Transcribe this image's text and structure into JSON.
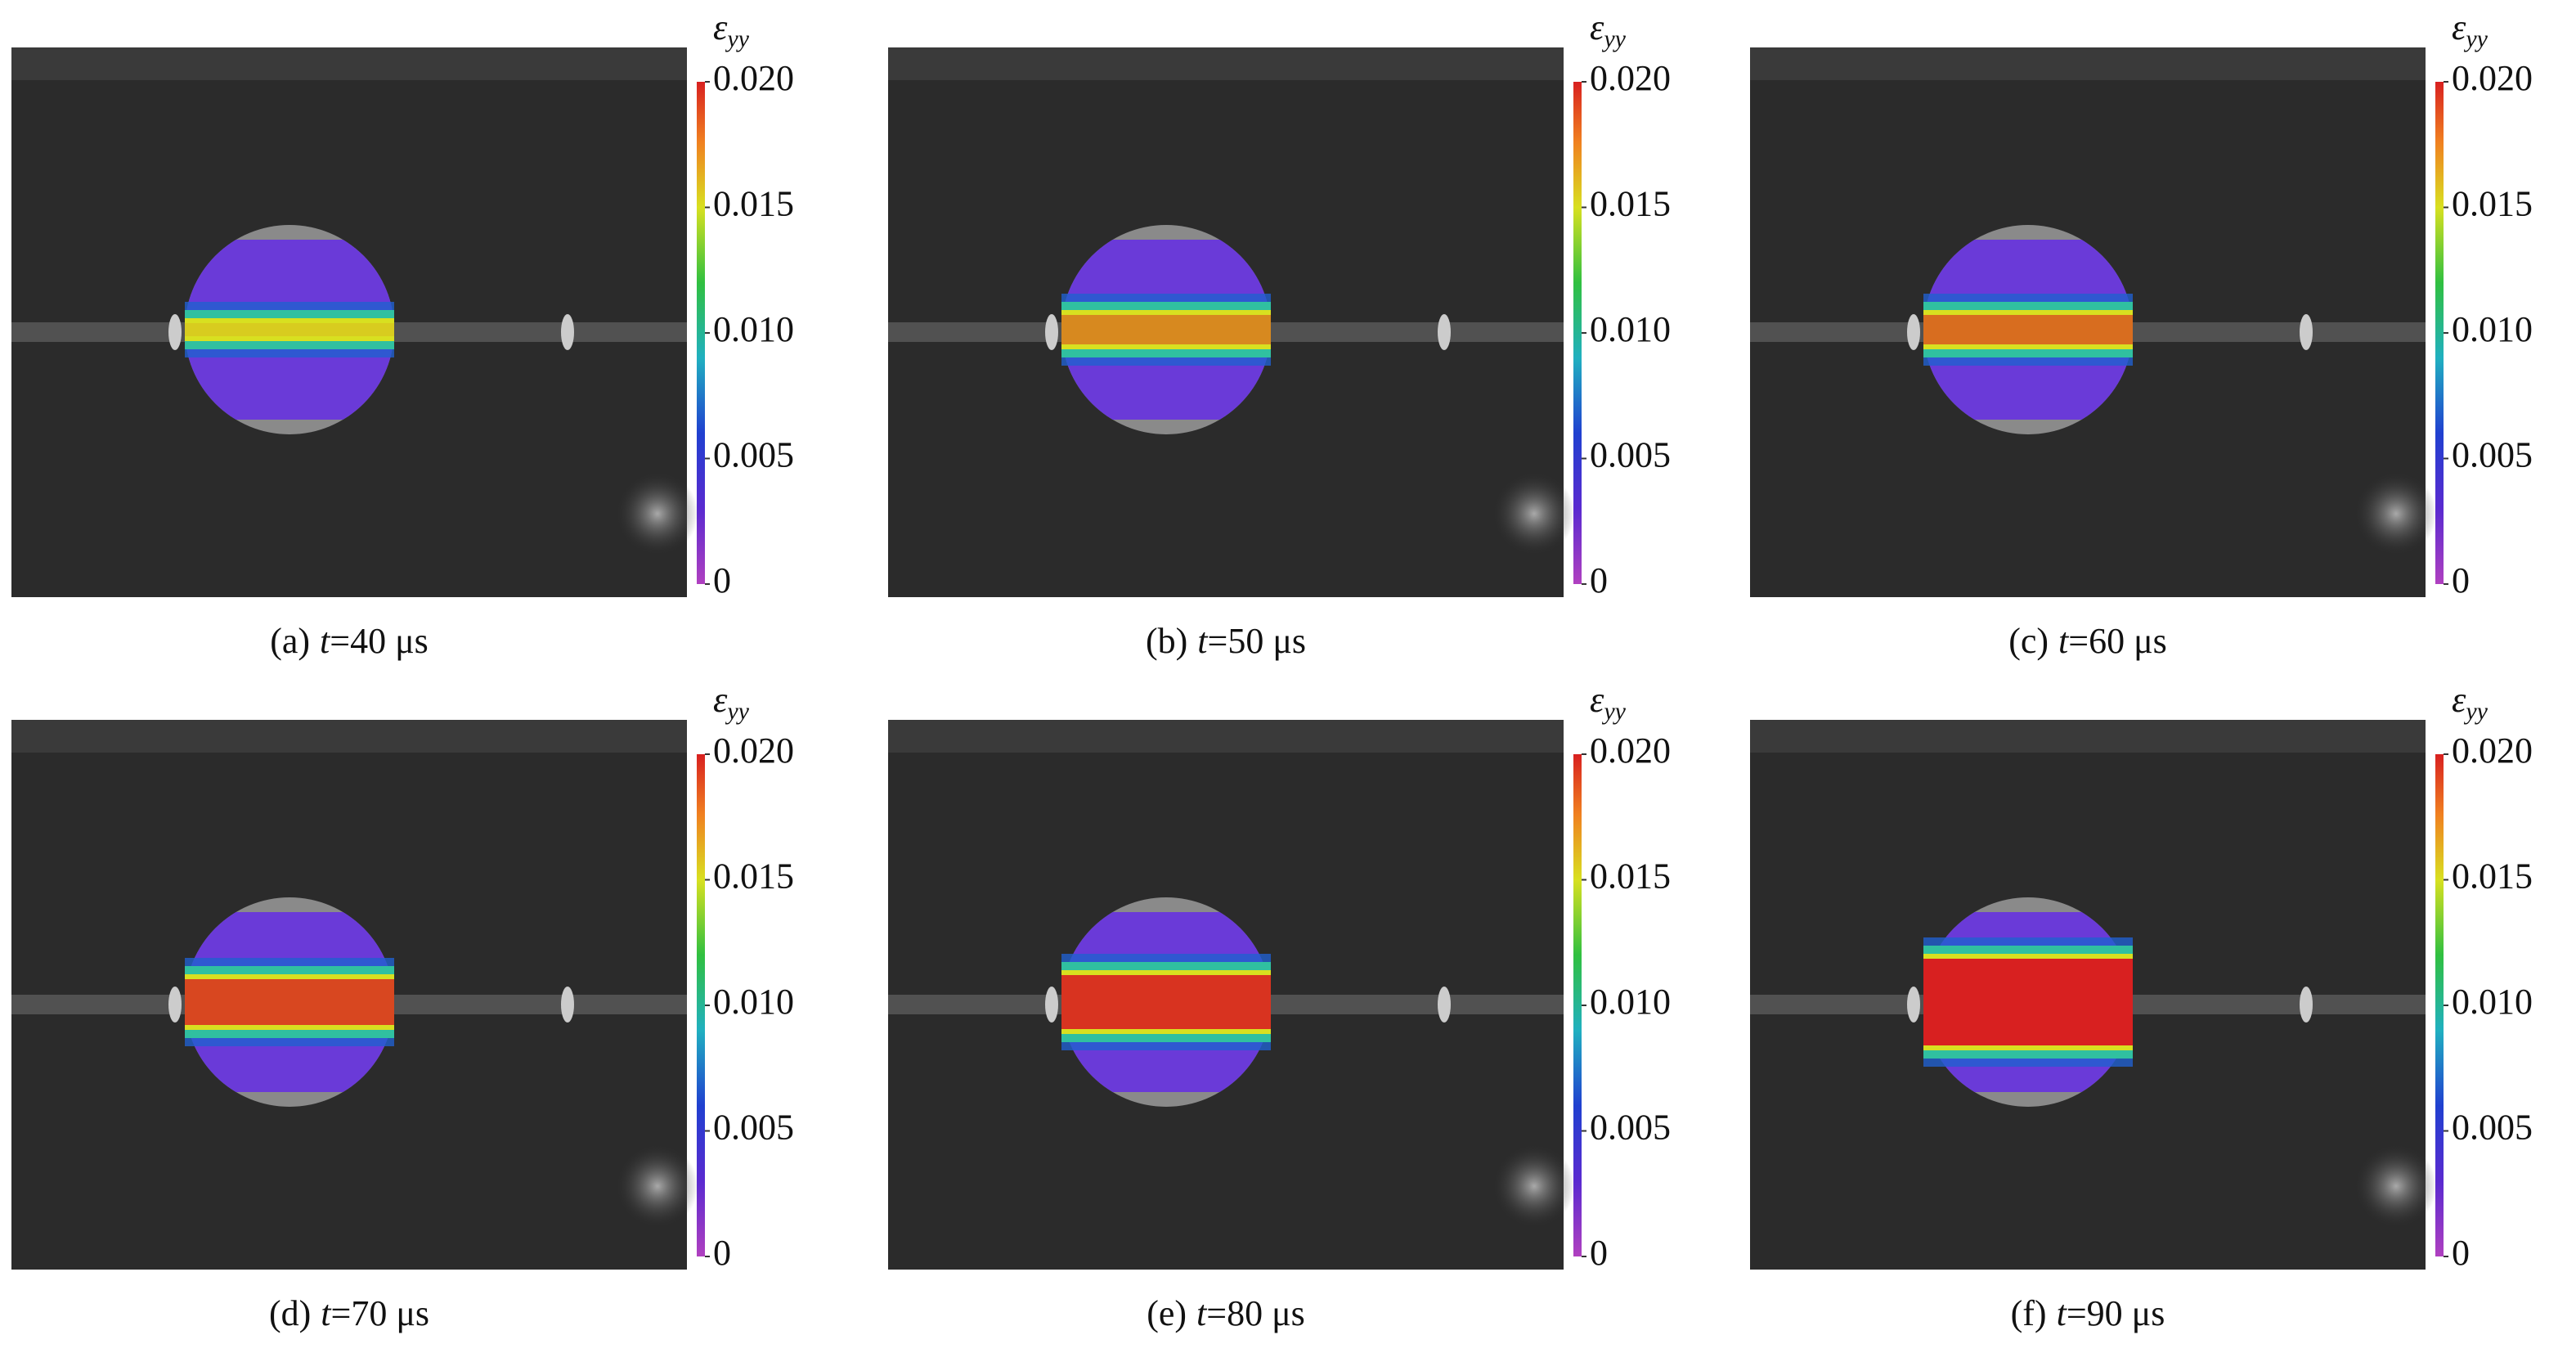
{
  "colorbar": {
    "symbol": "ε",
    "subscript": "yy",
    "ticks": [
      0,
      0.005,
      {
        "value": 0.01,
        "label": "0.010"
      },
      0.015,
      {
        "value": 0.02,
        "label": "0.020"
      }
    ],
    "range": [
      0,
      0.02
    ]
  },
  "panels": [
    {
      "label": "(a)",
      "var": "t",
      "value": "=40 μs"
    },
    {
      "label": "(b)",
      "var": "t",
      "value": "=50 μs"
    },
    {
      "label": "(c)",
      "var": "t",
      "value": "=60 μs"
    },
    {
      "label": "(d)",
      "var": "t",
      "value": "=70 μs"
    },
    {
      "label": "(e)",
      "var": "t",
      "value": "=80 μs"
    },
    {
      "label": "(f)",
      "var": "t",
      "value": "=90 μs"
    }
  ]
}
